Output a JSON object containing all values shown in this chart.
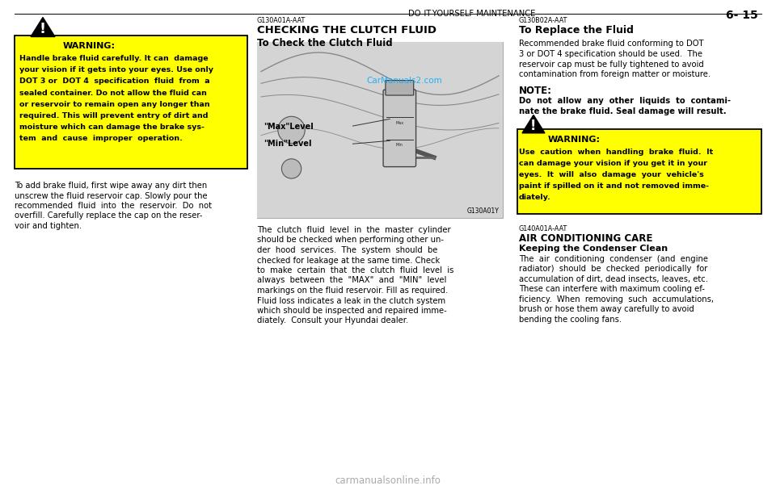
{
  "bg_color": "#ffffff",
  "header_left": "DO-IT-YOURSELF MAINTENANCE",
  "header_right": "6- 15",
  "section2_code": "G130A01A-AAT",
  "section2_title": "CHECKING THE CLUTCH FLUID",
  "section2_sub": "To Check the Clutch Fluid",
  "image_label_max": "\"Max\"Level",
  "image_label_min": "\"Min\"Level",
  "image_caption": "G130A01Y",
  "section2_body_lines": [
    "The  clutch  fluid  level  in  the  master  cylinder",
    "should be checked when performing other un-",
    "der  hood  services.  The  system  should  be",
    "checked for leakage at the same time. Check",
    "to  make  certain  that  the  clutch  fluid  level  is",
    "always  between  the  \"MAX\"  and  \"MIN\"  level",
    "markings on the fluid reservoir. Fill as required.",
    "Fluid loss indicates a leak in the clutch system",
    "which should be inspected and repaired imme-",
    "diately.  Consult your Hyundai dealer."
  ],
  "section3_code": "G130B02A-AAT",
  "section3_title": "To Replace the Fluid",
  "section3_body_lines": [
    "Recommended brake fluid conforming to DOT",
    "3 or DOT 4 specification should be used.  The",
    "reservoir cap must be fully tightened to avoid",
    "contamination from foreign matter or moisture."
  ],
  "note_title": "NOTE:",
  "note_body_lines": [
    "Do  not  allow  any  other  liquids  to  contami-",
    "nate the brake fluid. Seal damage will result."
  ],
  "warn2_lines": [
    "Use  caution  when  handling  brake  fluid.  It",
    "can damage your vision if you get it in your",
    "eyes.  It  will  also  damage  your  vehicle's",
    "paint if spilled on it and not removed imme-",
    "diately."
  ],
  "section4_code": "G140A01A-AAT",
  "section4_title": "AIR CONDITIONING CARE",
  "section4_sub": "Keeping the Condenser Clean",
  "section4_body_lines": [
    "The  air  conditioning  condenser  (and  engine",
    "radiator)  should  be  checked  periodically  for",
    "accumulation of dirt, dead insects, leaves, etc.",
    "These can interfere with maximum cooling ef-",
    "ficiency.  When  removing  such  accumulations,",
    "brush or hose them away carefully to avoid",
    "bending the cooling fans."
  ],
  "warn1_lines": [
    "Handle brake fluid carefully. It can  damage",
    "your vision if it gets into your eyes. Use only",
    "DOT 3 or  DOT 4  specification  fluid  from  a",
    "sealed container. Do not allow the fluid can",
    "or reservoir to remain open any longer than",
    "required. This will prevent entry of dirt and",
    "moisture which can damage the brake sys-",
    "tem  and  cause  improper  operation."
  ],
  "left_body_lines": [
    "To add brake fluid, first wipe away any dirt then",
    "unscrew the fluid reservoir cap. Slowly pour the",
    "recommended  fluid  into  the  reservoir.  Do  not",
    "overfill. Carefully replace the cap on the reser-",
    "voir and tighten."
  ],
  "watermark": "CarManuals2.com",
  "footer": "carmanualsonline.info",
  "yellow": "#FFFF00",
  "black": "#000000",
  "white": "#ffffff",
  "cyan": "#00aaff",
  "gray_img": "#d8d8d8",
  "gray_light": "#eeeeee"
}
